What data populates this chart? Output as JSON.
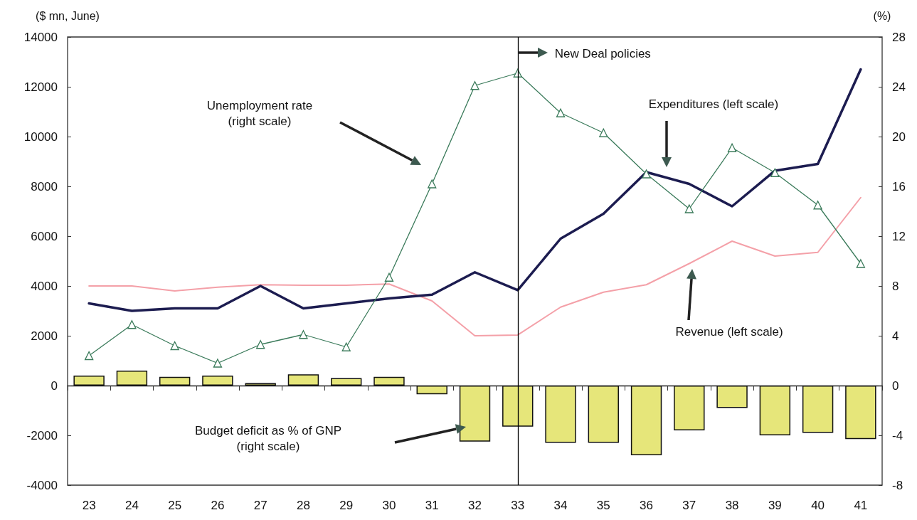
{
  "chart_data": {
    "type": "line",
    "ylabel": "($ mn, June)",
    "y2label": "(%)",
    "categories": [
      "23",
      "24",
      "25",
      "26",
      "27",
      "28",
      "29",
      "30",
      "31",
      "32",
      "33",
      "34",
      "35",
      "36",
      "37",
      "38",
      "39",
      "40",
      "41"
    ],
    "ylim": [
      -4000,
      14000
    ],
    "yticks": [
      -4000,
      -2000,
      0,
      2000,
      4000,
      6000,
      8000,
      10000,
      12000,
      14000
    ],
    "y2lim": [
      -8,
      28
    ],
    "y2ticks": [
      -8,
      -4,
      0,
      4,
      8,
      12,
      16,
      20,
      24,
      28
    ],
    "grid": false,
    "series": [
      {
        "type": "bar",
        "axis": "y2",
        "color": "#e6e67a",
        "values": [
          0.8,
          1.2,
          0.7,
          0.8,
          0.2,
          0.9,
          0.6,
          0.7,
          -0.7,
          -4.5,
          -3.3,
          -4.6,
          -4.6,
          -5.6,
          -3.6,
          -1.8,
          -4.0,
          -3.8,
          -4.3
        ]
      },
      {
        "color": "#f4a0a8",
        "marker": "none",
        "values": [
          4000,
          4000,
          3800,
          3950,
          4050,
          4030,
          4030,
          4080,
          3400,
          2000,
          2030,
          3150,
          3750,
          4050,
          4900,
          5800,
          5200,
          5350,
          7550
        ]
      },
      {
        "color": "#1c1c50",
        "marker": "none",
        "values": [
          3300,
          3000,
          3100,
          3100,
          4000,
          3100,
          3300,
          3500,
          3650,
          4550,
          3830,
          5900,
          6900,
          8570,
          8100,
          7200,
          8630,
          8900,
          12700
        ]
      },
      {
        "axis": "y2",
        "color": "#3a7a5a",
        "marker": "triangle",
        "values": [
          2.4,
          4.9,
          3.2,
          1.8,
          3.3,
          4.1,
          3.1,
          8.7,
          16.2,
          24.1,
          25.1,
          21.9,
          20.3,
          17.0,
          14.2,
          19.1,
          17.1,
          14.5,
          9.8
        ]
      }
    ],
    "annotations": [
      "Budget deficit as % of GNP\n(right scale)",
      "Revenue (left scale)",
      "Expenditures (left scale)",
      "Unemployment rate\n(right scale)"
    ],
    "ref_lines": [
      {
        "axis": "x",
        "value": "33",
        "label": "New Deal policies",
        "color": "#000000"
      }
    ]
  }
}
